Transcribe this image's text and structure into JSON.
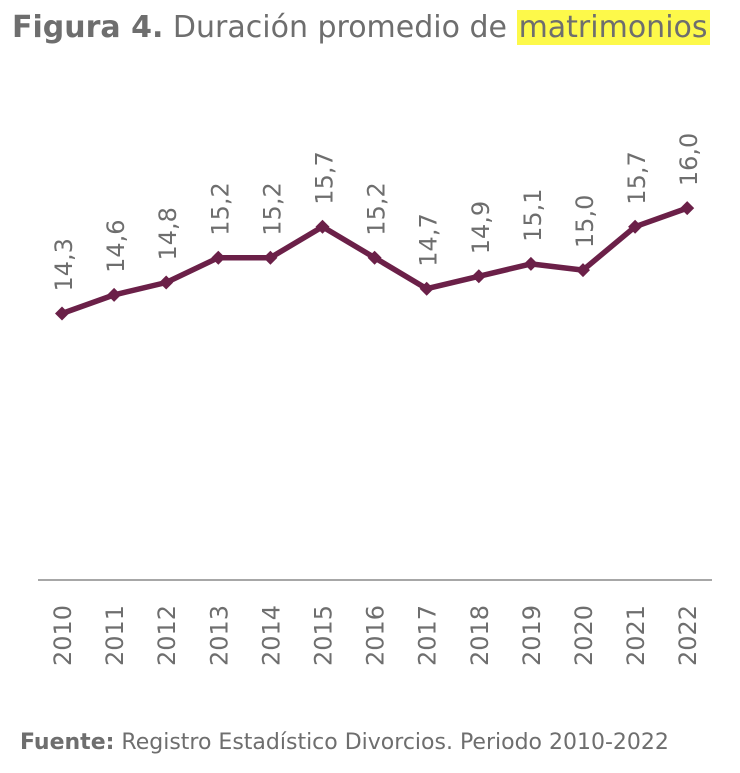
{
  "title": {
    "prefix": "Figura 4.",
    "text": "Duración promedio de",
    "highlight": "matrimonios"
  },
  "source": {
    "label": "Fuente:",
    "text": "Registro Estadístico Divorcios. Periodo 2010-2022"
  },
  "colors": {
    "line": "#6b2048",
    "highlight": "#fdf94a",
    "text": "#6e6e6e",
    "axis": "#8a8a8a"
  },
  "chart_data": {
    "type": "line",
    "categories": [
      "2010",
      "2011",
      "2012",
      "2013",
      "2014",
      "2015",
      "2016",
      "2017",
      "2018",
      "2019",
      "2020",
      "2021",
      "2022"
    ],
    "values": [
      14.3,
      14.6,
      14.8,
      15.2,
      15.2,
      15.7,
      15.2,
      14.7,
      14.9,
      15.1,
      15.0,
      15.7,
      16.0
    ],
    "data_labels": [
      "14,3",
      "14,6",
      "14,8",
      "15,2",
      "15,2",
      "15,7",
      "15,2",
      "14,7",
      "14,9",
      "15,1",
      "15,0",
      "15,7",
      "16,0"
    ],
    "grid": false,
    "markers": "diamond"
  }
}
